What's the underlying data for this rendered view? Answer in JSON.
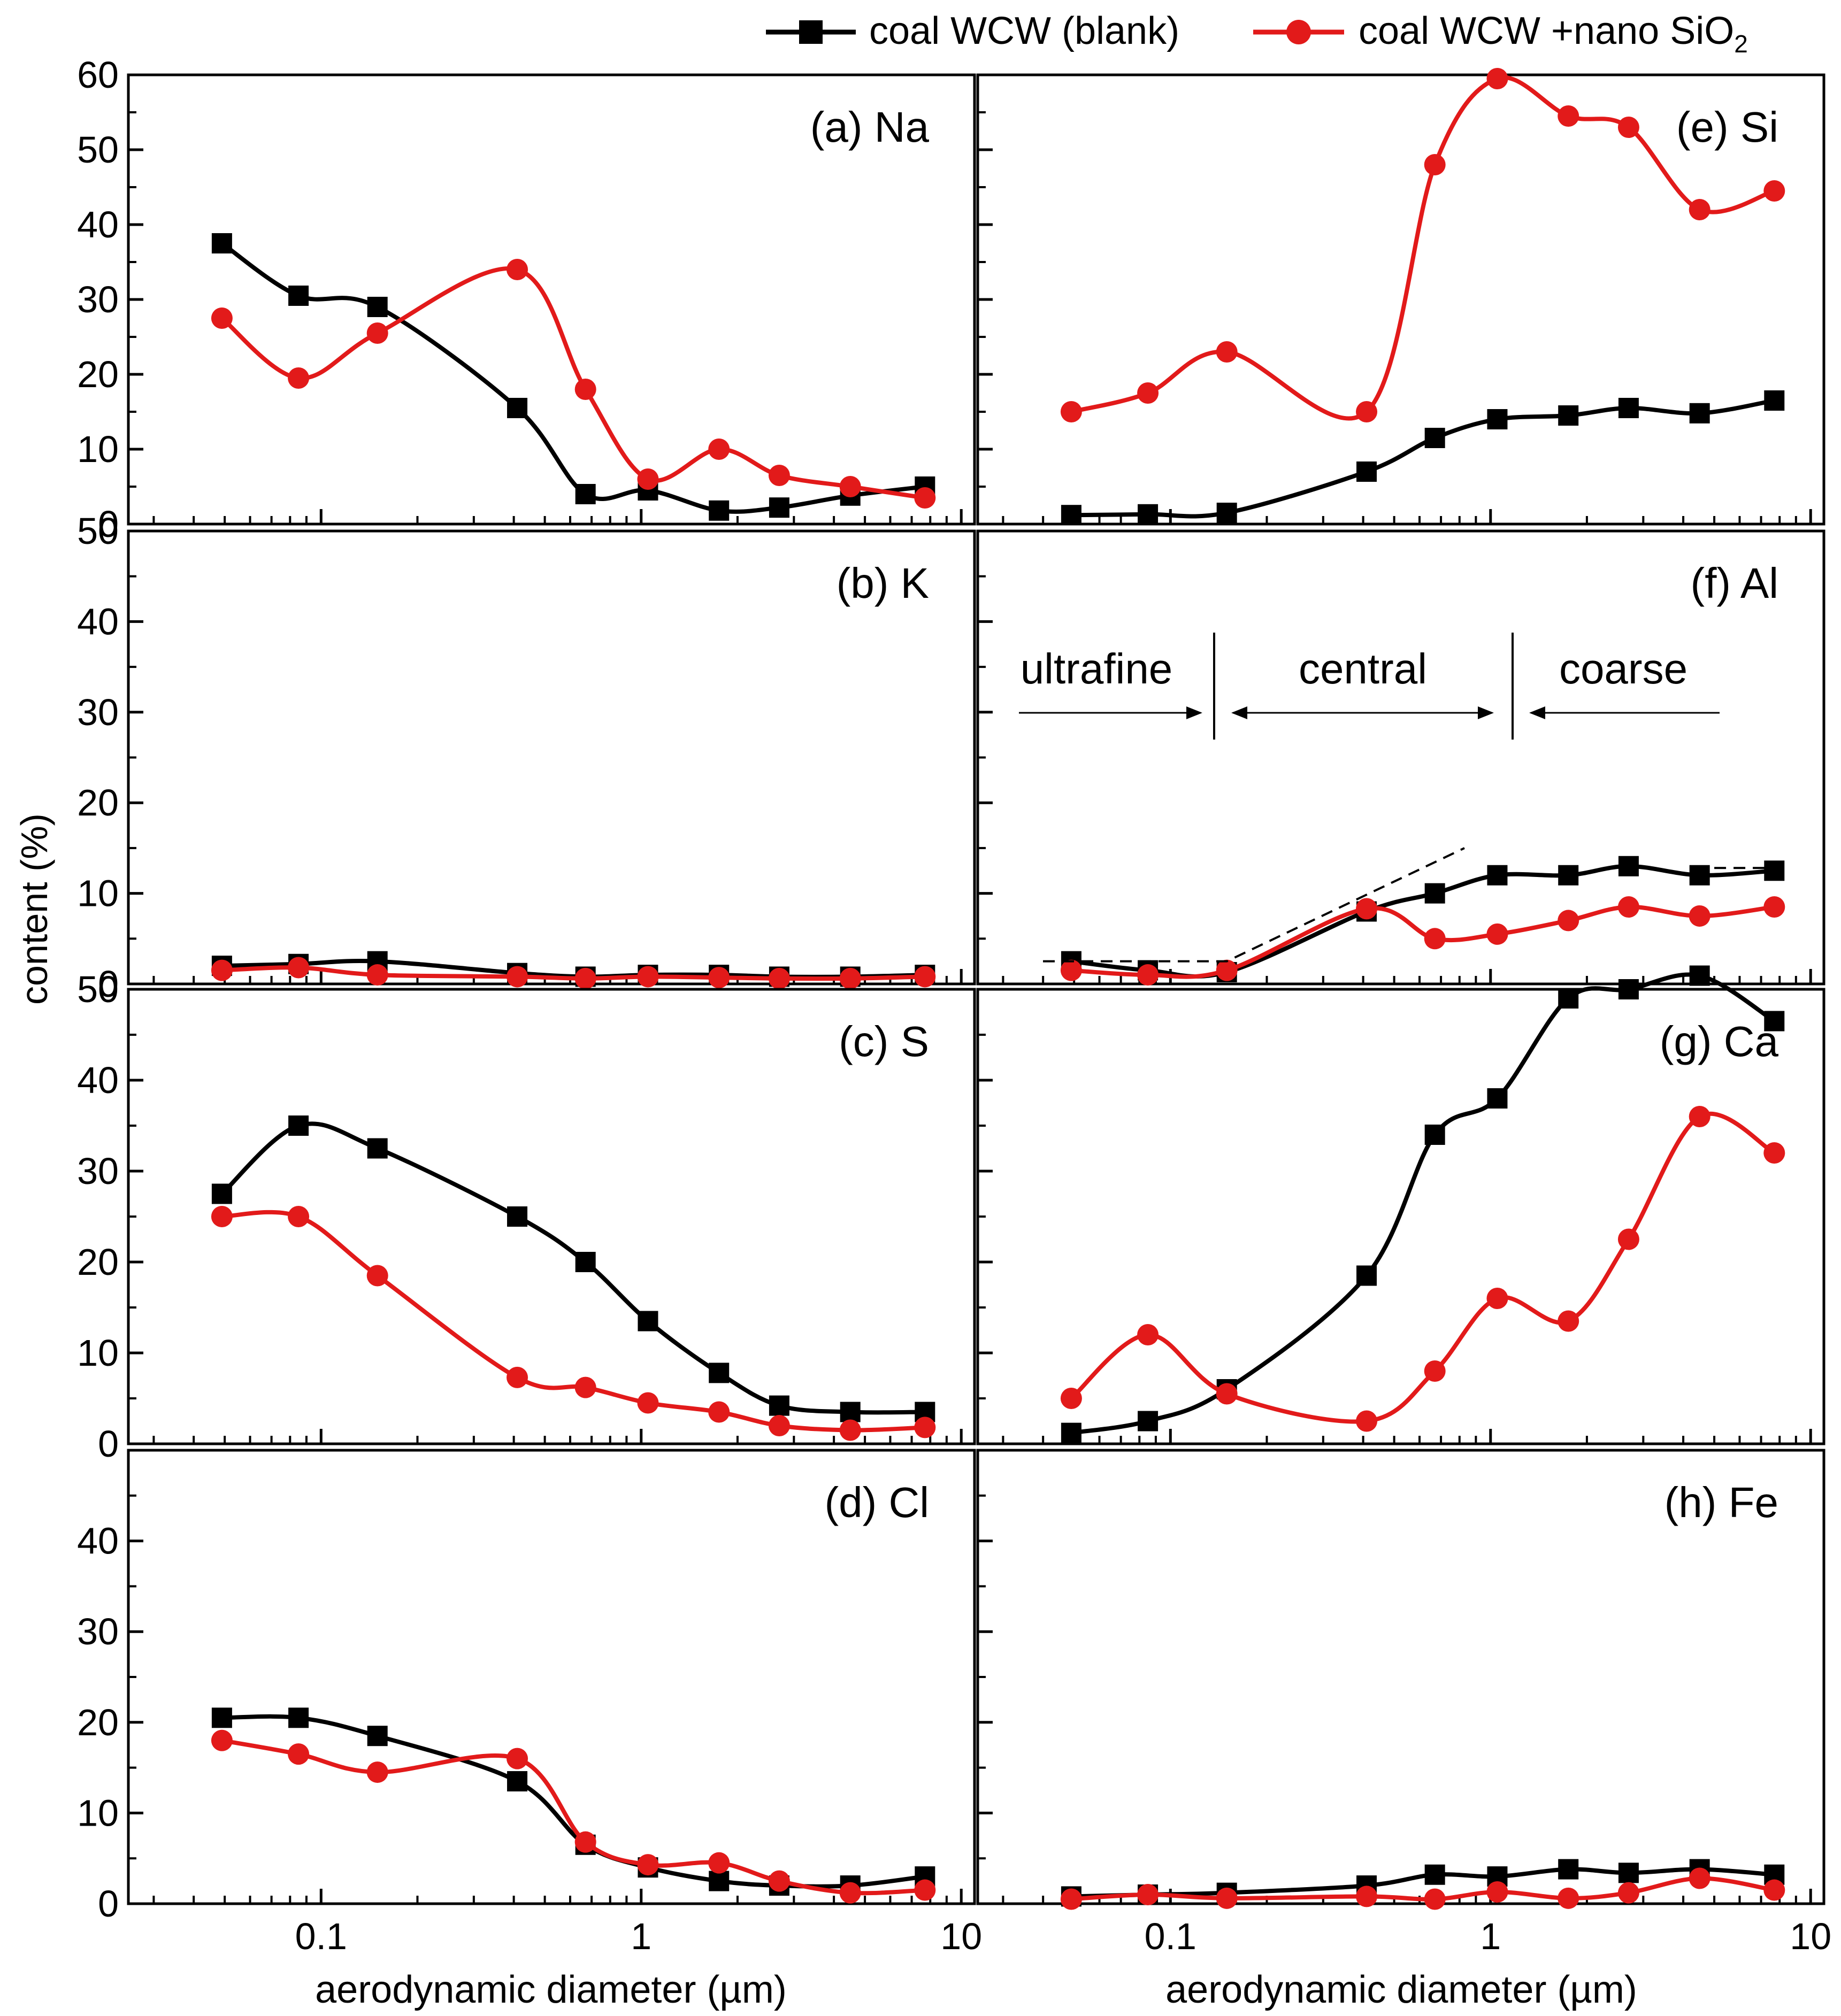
{
  "legend": {
    "series": [
      {
        "label": "coal WCW (blank)",
        "color": "#000000",
        "marker": "square"
      },
      {
        "label_main": "coal WCW +nano SiO",
        "label_sub": "2",
        "color": "#e21a1a",
        "marker": "circle"
      }
    ]
  },
  "axes": {
    "ylabel": "content (%)",
    "xlabel": "aerodynamic diameter (µm)",
    "xticks": [
      "0.1",
      "1",
      "10"
    ],
    "xscale": "log",
    "xlim": [
      0.025,
      11
    ],
    "yticks_top": [
      "0",
      "10",
      "20",
      "30",
      "40",
      "50",
      "60"
    ],
    "yticks_inner": [
      "0",
      "10",
      "20",
      "30",
      "40",
      "50"
    ],
    "yticks_bottom": [
      "0",
      "10",
      "20",
      "30",
      "40"
    ]
  },
  "size_modes": {
    "ultrafine": "ultrafine",
    "central": "central",
    "coarse": "coarse"
  },
  "chart_data": [
    {
      "id": "a",
      "type": "line",
      "title": "(a) Na",
      "ylim": [
        0,
        60
      ],
      "x": [
        0.049,
        0.085,
        0.15,
        0.41,
        0.67,
        1.05,
        1.75,
        2.7,
        4.5,
        7.7
      ],
      "series": [
        {
          "name": "coal WCW (blank)",
          "values": [
            37.5,
            30.5,
            29,
            15.5,
            4,
            4.5,
            1.8,
            2.2,
            3.8,
            5
          ]
        },
        {
          "name": "coal WCW +nano SiO2",
          "values": [
            27.5,
            19.5,
            25.5,
            34,
            18,
            6,
            10,
            6.5,
            5,
            3.5
          ]
        }
      ]
    },
    {
      "id": "b",
      "type": "line",
      "title": "(b) K",
      "ylim": [
        0,
        50
      ],
      "x": [
        0.049,
        0.085,
        0.15,
        0.41,
        0.67,
        1.05,
        1.75,
        2.7,
        4.5,
        7.7
      ],
      "series": [
        {
          "name": "coal WCW (blank)",
          "values": [
            2,
            2.2,
            2.5,
            1.2,
            0.8,
            1,
            1,
            0.8,
            0.8,
            1
          ]
        },
        {
          "name": "coal WCW +nano SiO2",
          "values": [
            1.5,
            1.8,
            1,
            0.8,
            0.6,
            0.8,
            0.7,
            0.6,
            0.6,
            0.8
          ]
        }
      ]
    },
    {
      "id": "c",
      "type": "line",
      "title": "(c) S",
      "ylim": [
        0,
        50
      ],
      "x": [
        0.049,
        0.085,
        0.15,
        0.41,
        0.67,
        1.05,
        1.75,
        2.7,
        4.5,
        7.7
      ],
      "series": [
        {
          "name": "coal WCW (blank)",
          "values": [
            27.5,
            35,
            32.5,
            25,
            20,
            13.5,
            7.8,
            4.2,
            3.5,
            3.5
          ]
        },
        {
          "name": "coal WCW +nano SiO2",
          "values": [
            25,
            25,
            18.5,
            7.3,
            6.2,
            4.5,
            3.5,
            2,
            1.5,
            1.8
          ]
        }
      ]
    },
    {
      "id": "d",
      "type": "line",
      "title": "(d) Cl",
      "ylim": [
        0,
        50
      ],
      "x": [
        0.049,
        0.085,
        0.15,
        0.41,
        0.67,
        1.05,
        1.75,
        2.7,
        4.5,
        7.7
      ],
      "series": [
        {
          "name": "coal WCW (blank)",
          "values": [
            20.5,
            20.5,
            18.5,
            13.5,
            6.5,
            4,
            2.5,
            2,
            2,
            3
          ]
        },
        {
          "name": "coal WCW +nano SiO2",
          "values": [
            18,
            16.5,
            14.5,
            16,
            6.8,
            4.3,
            4.5,
            2.5,
            1.2,
            1.5
          ]
        }
      ]
    },
    {
      "id": "e",
      "type": "line",
      "title": "(e) Si",
      "ylim": [
        0,
        60
      ],
      "x": [
        0.049,
        0.085,
        0.15,
        0.41,
        0.67,
        1.05,
        1.75,
        2.7,
        4.5,
        7.7
      ],
      "series": [
        {
          "name": "coal WCW (blank)",
          "values": [
            1.2,
            1.3,
            1.5,
            7,
            11.5,
            14,
            14.5,
            15.5,
            14.8,
            16.5
          ]
        },
        {
          "name": "coal WCW +nano SiO2",
          "values": [
            15,
            17.5,
            23,
            15,
            48,
            59.5,
            54.5,
            53,
            42,
            44.5
          ]
        }
      ]
    },
    {
      "id": "f",
      "type": "line",
      "title": "(f) Al",
      "ylim": [
        0,
        50
      ],
      "x": [
        0.049,
        0.085,
        0.15,
        0.41,
        0.67,
        1.05,
        1.75,
        2.7,
        4.5,
        7.7
      ],
      "series": [
        {
          "name": "coal WCW (blank)",
          "values": [
            2.5,
            1.5,
            1.3,
            8,
            10,
            12,
            12,
            13,
            12,
            12.5
          ]
        },
        {
          "name": "coal WCW +nano SiO2",
          "values": [
            1.5,
            1,
            1.5,
            8.3,
            5,
            5.5,
            7,
            8.5,
            7.5,
            8.5
          ]
        }
      ]
    },
    {
      "id": "g",
      "type": "line",
      "title": "(g) Ca",
      "ylim": [
        0,
        50
      ],
      "x": [
        0.049,
        0.085,
        0.15,
        0.41,
        0.67,
        1.05,
        1.75,
        2.7,
        4.5,
        7.7
      ],
      "series": [
        {
          "name": "coal WCW (blank)",
          "values": [
            1.2,
            2.5,
            6,
            18.5,
            34,
            38,
            49,
            50,
            51.5,
            46.5
          ]
        },
        {
          "name": "coal WCW +nano SiO2",
          "values": [
            5,
            12,
            5.5,
            2.5,
            8,
            16,
            13.5,
            22.5,
            36,
            32
          ]
        }
      ]
    },
    {
      "id": "h",
      "type": "line",
      "title": "(h) Fe",
      "ylim": [
        0,
        50
      ],
      "x": [
        0.049,
        0.085,
        0.15,
        0.41,
        0.67,
        1.05,
        1.75,
        2.7,
        4.5,
        7.7
      ],
      "series": [
        {
          "name": "coal WCW (blank)",
          "values": [
            0.8,
            1,
            1.2,
            2,
            3.2,
            3,
            3.8,
            3.4,
            3.8,
            3.2
          ]
        },
        {
          "name": "coal WCW +nano SiO2",
          "values": [
            0.5,
            1,
            0.6,
            0.8,
            0.5,
            1.3,
            0.6,
            1.2,
            2.8,
            1.5
          ]
        }
      ]
    }
  ]
}
